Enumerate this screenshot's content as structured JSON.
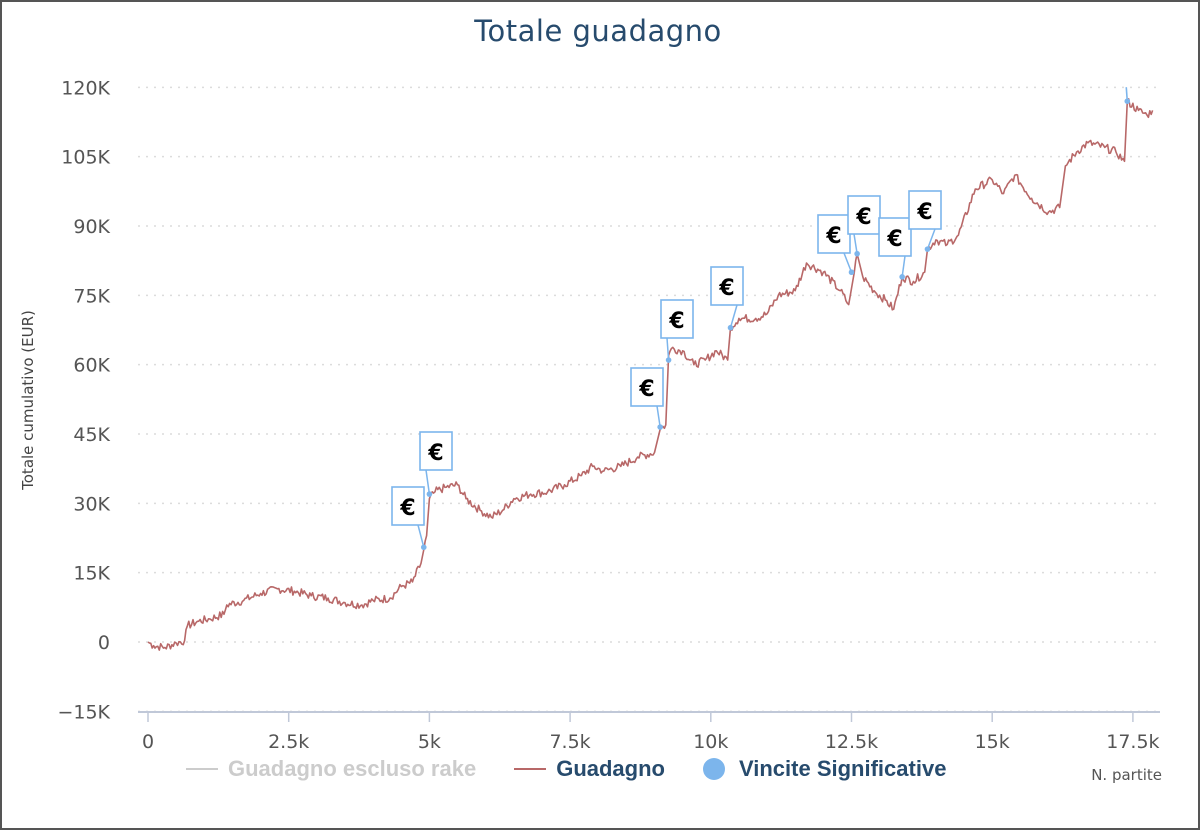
{
  "chart_data": {
    "type": "line",
    "title": "Totale guadagno",
    "ylabel": "Totale cumulativo (EUR)",
    "xlabel": "N. partite",
    "xlim": [
      0,
      18000
    ],
    "ylim": [
      -15000,
      120000
    ],
    "x_ticks": [
      0,
      2500,
      5000,
      7500,
      10000,
      12500,
      15000,
      17500
    ],
    "x_tick_labels": [
      "0",
      "2.5k",
      "5k",
      "7.5k",
      "10k",
      "12.5k",
      "15k",
      "17.5k"
    ],
    "y_ticks": [
      -15000,
      0,
      15000,
      30000,
      45000,
      60000,
      75000,
      90000,
      105000,
      120000
    ],
    "y_tick_labels": [
      "−15K",
      "0",
      "15K",
      "30K",
      "45K",
      "60K",
      "75K",
      "90K",
      "105K",
      "120K"
    ],
    "grid": "horizontal dotted",
    "legend_placement": "bottom",
    "colors": {
      "guadagno": "#b86868",
      "escluso_rake": "#cccccc",
      "vincite": "#7cb5ec",
      "title": "#274b6d"
    },
    "series": [
      {
        "name": "Guadagno escluso rake",
        "values": [],
        "hidden": true
      },
      {
        "name": "Guadagno",
        "points": [
          [
            0,
            0
          ],
          [
            100,
            -800
          ],
          [
            300,
            -1200
          ],
          [
            500,
            -200
          ],
          [
            650,
            300
          ],
          [
            700,
            3500
          ],
          [
            900,
            4500
          ],
          [
            1100,
            5000
          ],
          [
            1350,
            6000
          ],
          [
            1400,
            8000
          ],
          [
            1700,
            9000
          ],
          [
            2000,
            10500
          ],
          [
            2300,
            11500
          ],
          [
            2600,
            11000
          ],
          [
            2900,
            10000
          ],
          [
            3200,
            9500
          ],
          [
            3500,
            8500
          ],
          [
            3800,
            8000
          ],
          [
            4000,
            9000
          ],
          [
            4300,
            9500
          ],
          [
            4500,
            12000
          ],
          [
            4700,
            13000
          ],
          [
            4850,
            17000
          ],
          [
            4900,
            20000
          ],
          [
            4950,
            23000
          ],
          [
            5000,
            31000
          ],
          [
            5100,
            32500
          ],
          [
            5300,
            33500
          ],
          [
            5500,
            34000
          ],
          [
            5650,
            31000
          ],
          [
            5900,
            28500
          ],
          [
            6100,
            27000
          ],
          [
            6300,
            28500
          ],
          [
            6500,
            31000
          ],
          [
            6800,
            32000
          ],
          [
            7100,
            32500
          ],
          [
            7400,
            34000
          ],
          [
            7700,
            36000
          ],
          [
            7900,
            38000
          ],
          [
            8100,
            37000
          ],
          [
            8400,
            38000
          ],
          [
            8700,
            40000
          ],
          [
            9000,
            41000
          ],
          [
            9100,
            46000
          ],
          [
            9200,
            47000
          ],
          [
            9250,
            62000
          ],
          [
            9300,
            63500
          ],
          [
            9500,
            63000
          ],
          [
            9700,
            60000
          ],
          [
            9900,
            61000
          ],
          [
            10100,
            63000
          ],
          [
            10300,
            61000
          ],
          [
            10350,
            68000
          ],
          [
            10500,
            70000
          ],
          [
            10800,
            70000
          ],
          [
            11000,
            71000
          ],
          [
            11200,
            75000
          ],
          [
            11500,
            76000
          ],
          [
            11700,
            82000
          ],
          [
            12000,
            80000
          ],
          [
            12300,
            76000
          ],
          [
            12450,
            73000
          ],
          [
            12550,
            80000
          ],
          [
            12600,
            84000
          ],
          [
            12700,
            79000
          ],
          [
            12900,
            76000
          ],
          [
            13100,
            74000
          ],
          [
            13250,
            72000
          ],
          [
            13400,
            79000
          ],
          [
            13600,
            78000
          ],
          [
            13800,
            80000
          ],
          [
            13850,
            85000
          ],
          [
            14000,
            87000
          ],
          [
            14200,
            86000
          ],
          [
            14400,
            88000
          ],
          [
            14700,
            98000
          ],
          [
            15000,
            100000
          ],
          [
            15200,
            97000
          ],
          [
            15400,
            101000
          ],
          [
            15700,
            96000
          ],
          [
            16000,
            93000
          ],
          [
            16200,
            94000
          ],
          [
            16300,
            103000
          ],
          [
            16500,
            106000
          ],
          [
            16700,
            108000
          ],
          [
            17000,
            107000
          ],
          [
            17200,
            106000
          ],
          [
            17350,
            104000
          ],
          [
            17400,
            117000
          ],
          [
            17600,
            115000
          ],
          [
            17750,
            114000
          ],
          [
            17850,
            115000
          ]
        ]
      },
      {
        "name": "Vincite Significative",
        "points": [
          [
            4900,
            20500
          ],
          [
            5000,
            32000
          ],
          [
            9100,
            46500
          ],
          [
            9250,
            61000
          ],
          [
            10350,
            68000
          ],
          [
            12500,
            80000
          ],
          [
            12600,
            84000
          ],
          [
            13400,
            79000
          ],
          [
            13850,
            85000
          ],
          [
            17400,
            117000
          ]
        ],
        "flag_label": "€"
      }
    ]
  },
  "legend": {
    "items": [
      {
        "label": "Guadagno escluso rake",
        "color": "#cccccc",
        "text_color": "#cccccc",
        "marker": "line"
      },
      {
        "label": "Guadagno",
        "color": "#b86868",
        "text_color": "#274b6d",
        "marker": "line"
      },
      {
        "label": "Vincite Significative",
        "color": "#7cb5ec",
        "text_color": "#274b6d",
        "marker": "dot"
      }
    ]
  }
}
